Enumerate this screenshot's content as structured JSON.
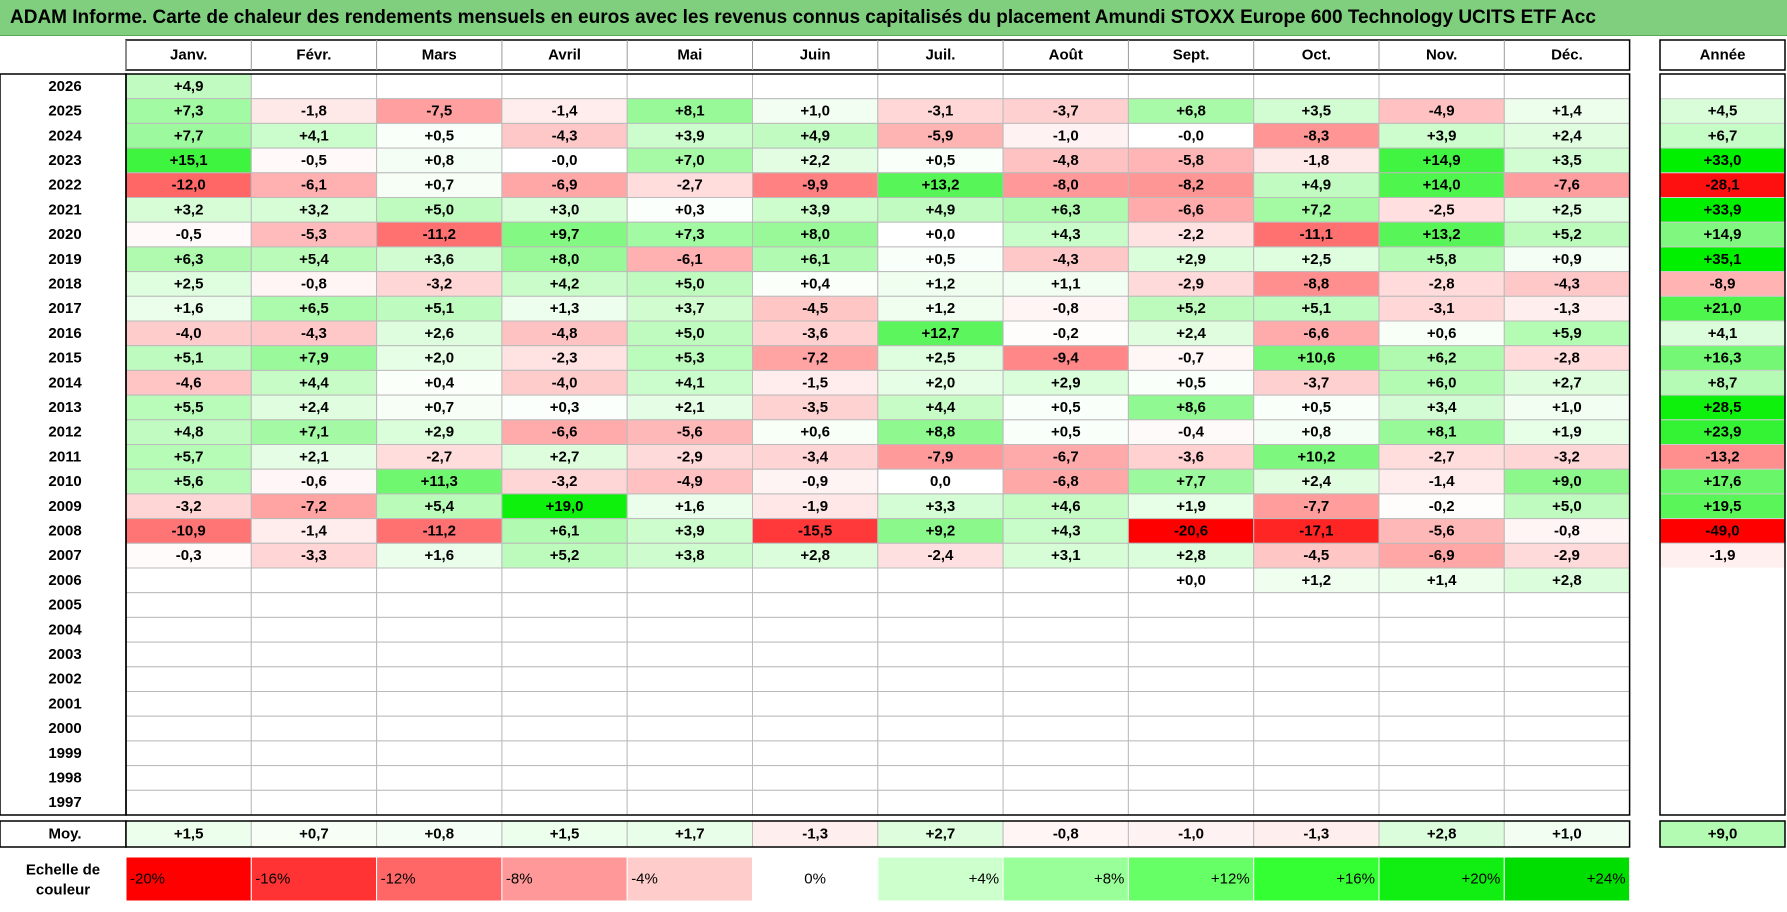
{
  "title": "ADAM Informe. Carte de chaleur des rendements mensuels en euros avec les revenus connus capitalisés du placement Amundi STOXX Europe 600 Technology UCITS ETF Acc",
  "chart_data": {
    "type": "heatmap",
    "title": "ADAM Informe. Carte de chaleur des rendements mensuels en euros avec les revenus connus capitalisés du placement Amundi STOXX Europe 600 Technology UCITS ETF Acc",
    "months": [
      "Janv.",
      "Févr.",
      "Mars",
      "Avril",
      "Mai",
      "Juin",
      "Juil.",
      "Août",
      "Sept.",
      "Oct.",
      "Nov.",
      "Déc."
    ],
    "year_header": "Année",
    "rows": [
      {
        "year": "2026",
        "months": [
          "+4,9",
          "",
          "",
          "",
          "",
          "",
          "",
          "",
          "",
          "",
          "",
          ""
        ],
        "annual": ""
      },
      {
        "year": "2025",
        "months": [
          "+7,3",
          "-1,8",
          "-7,5",
          "-1,4",
          "+8,1",
          "+1,0",
          "-3,1",
          "-3,7",
          "+6,8",
          "+3,5",
          "-4,9",
          "+1,4"
        ],
        "annual": "+4,5"
      },
      {
        "year": "2024",
        "months": [
          "+7,7",
          "+4,1",
          "+0,5",
          "-4,3",
          "+3,9",
          "+4,9",
          "-5,9",
          "-1,0",
          "-0,0",
          "-8,3",
          "+3,9",
          "+2,4"
        ],
        "annual": "+6,7"
      },
      {
        "year": "2023",
        "months": [
          "+15,1",
          "-0,5",
          "+0,8",
          "-0,0",
          "+7,0",
          "+2,2",
          "+0,5",
          "-4,8",
          "-5,8",
          "-1,8",
          "+14,9",
          "+3,5"
        ],
        "annual": "+33,0"
      },
      {
        "year": "2022",
        "months": [
          "-12,0",
          "-6,1",
          "+0,7",
          "-6,9",
          "-2,7",
          "-9,9",
          "+13,2",
          "-8,0",
          "-8,2",
          "+4,9",
          "+14,0",
          "-7,6"
        ],
        "annual": "-28,1"
      },
      {
        "year": "2021",
        "months": [
          "+3,2",
          "+3,2",
          "+5,0",
          "+3,0",
          "+0,3",
          "+3,9",
          "+4,9",
          "+6,3",
          "-6,6",
          "+7,2",
          "-2,5",
          "+2,5"
        ],
        "annual": "+33,9"
      },
      {
        "year": "2020",
        "months": [
          "-0,5",
          "-5,3",
          "-11,2",
          "+9,7",
          "+7,3",
          "+8,0",
          "+0,0",
          "+4,3",
          "-2,2",
          "-11,1",
          "+13,2",
          "+5,2"
        ],
        "annual": "+14,9"
      },
      {
        "year": "2019",
        "months": [
          "+6,3",
          "+5,4",
          "+3,6",
          "+8,0",
          "-6,1",
          "+6,1",
          "+0,5",
          "-4,3",
          "+2,9",
          "+2,5",
          "+5,8",
          "+0,9"
        ],
        "annual": "+35,1"
      },
      {
        "year": "2018",
        "months": [
          "+2,5",
          "-0,8",
          "-3,2",
          "+4,2",
          "+5,0",
          "+0,4",
          "+1,2",
          "+1,1",
          "-2,9",
          "-8,8",
          "-2,8",
          "-4,3"
        ],
        "annual": "-8,9"
      },
      {
        "year": "2017",
        "months": [
          "+1,6",
          "+6,5",
          "+5,1",
          "+1,3",
          "+3,7",
          "-4,5",
          "+1,2",
          "-0,8",
          "+5,2",
          "+5,1",
          "-3,1",
          "-1,3"
        ],
        "annual": "+21,0"
      },
      {
        "year": "2016",
        "months": [
          "-4,0",
          "-4,3",
          "+2,6",
          "-4,8",
          "+5,0",
          "-3,6",
          "+12,7",
          "-0,2",
          "+2,4",
          "-6,6",
          "+0,6",
          "+5,9"
        ],
        "annual": "+4,1"
      },
      {
        "year": "2015",
        "months": [
          "+5,1",
          "+7,9",
          "+2,0",
          "-2,3",
          "+5,3",
          "-7,2",
          "+2,5",
          "-9,4",
          "-0,7",
          "+10,6",
          "+6,2",
          "-2,8"
        ],
        "annual": "+16,3"
      },
      {
        "year": "2014",
        "months": [
          "-4,6",
          "+4,4",
          "+0,4",
          "-4,0",
          "+4,1",
          "-1,5",
          "+2,0",
          "+2,9",
          "+0,5",
          "-3,7",
          "+6,0",
          "+2,7"
        ],
        "annual": "+8,7"
      },
      {
        "year": "2013",
        "months": [
          "+5,5",
          "+2,4",
          "+0,7",
          "+0,3",
          "+2,1",
          "-3,5",
          "+4,4",
          "+0,5",
          "+8,6",
          "+0,5",
          "+3,4",
          "+1,0"
        ],
        "annual": "+28,5"
      },
      {
        "year": "2012",
        "months": [
          "+4,8",
          "+7,1",
          "+2,9",
          "-6,6",
          "-5,6",
          "+0,6",
          "+8,8",
          "+0,5",
          "-0,4",
          "+0,8",
          "+8,1",
          "+1,9"
        ],
        "annual": "+23,9"
      },
      {
        "year": "2011",
        "months": [
          "+5,7",
          "+2,1",
          "-2,7",
          "+2,7",
          "-2,9",
          "-3,4",
          "-7,9",
          "-6,7",
          "-3,6",
          "+10,2",
          "-2,7",
          "-3,2"
        ],
        "annual": "-13,2"
      },
      {
        "year": "2010",
        "months": [
          "+5,6",
          "-0,6",
          "+11,3",
          "-3,2",
          "-4,9",
          "-0,9",
          "0,0",
          "-6,8",
          "+7,7",
          "+2,4",
          "-1,4",
          "+9,0"
        ],
        "annual": "+17,6"
      },
      {
        "year": "2009",
        "months": [
          "-3,2",
          "-7,2",
          "+5,4",
          "+19,0",
          "+1,6",
          "-1,9",
          "+3,3",
          "+4,6",
          "+1,9",
          "-7,7",
          "-0,2",
          "+5,0"
        ],
        "annual": "+19,5"
      },
      {
        "year": "2008",
        "months": [
          "-10,9",
          "-1,4",
          "-11,2",
          "+6,1",
          "+3,9",
          "-15,5",
          "+9,2",
          "+4,3",
          "-20,6",
          "-17,1",
          "-5,6",
          "-0,8"
        ],
        "annual": "-49,0"
      },
      {
        "year": "2007",
        "months": [
          "-0,3",
          "-3,3",
          "+1,6",
          "+5,2",
          "+3,8",
          "+2,8",
          "-2,4",
          "+3,1",
          "+2,8",
          "-4,5",
          "-6,9",
          "-2,9"
        ],
        "annual": "-1,9"
      },
      {
        "year": "2006",
        "months": [
          "",
          "",
          "",
          "",
          "",
          "",
          "",
          "",
          "+0,0",
          "+1,2",
          "+1,4",
          "+2,8"
        ],
        "annual": ""
      },
      {
        "year": "2005",
        "months": [
          "",
          "",
          "",
          "",
          "",
          "",
          "",
          "",
          "",
          "",
          "",
          ""
        ],
        "annual": ""
      },
      {
        "year": "2004",
        "months": [
          "",
          "",
          "",
          "",
          "",
          "",
          "",
          "",
          "",
          "",
          "",
          ""
        ],
        "annual": ""
      },
      {
        "year": "2003",
        "months": [
          "",
          "",
          "",
          "",
          "",
          "",
          "",
          "",
          "",
          "",
          "",
          ""
        ],
        "annual": ""
      },
      {
        "year": "2002",
        "months": [
          "",
          "",
          "",
          "",
          "",
          "",
          "",
          "",
          "",
          "",
          "",
          ""
        ],
        "annual": ""
      },
      {
        "year": "2001",
        "months": [
          "",
          "",
          "",
          "",
          "",
          "",
          "",
          "",
          "",
          "",
          "",
          ""
        ],
        "annual": ""
      },
      {
        "year": "2000",
        "months": [
          "",
          "",
          "",
          "",
          "",
          "",
          "",
          "",
          "",
          "",
          "",
          ""
        ],
        "annual": ""
      },
      {
        "year": "1999",
        "months": [
          "",
          "",
          "",
          "",
          "",
          "",
          "",
          "",
          "",
          "",
          "",
          ""
        ],
        "annual": ""
      },
      {
        "year": "1998",
        "months": [
          "",
          "",
          "",
          "",
          "",
          "",
          "",
          "",
          "",
          "",
          "",
          ""
        ],
        "annual": ""
      },
      {
        "year": "1997",
        "months": [
          "",
          "",
          "",
          "",
          "",
          "",
          "",
          "",
          "",
          "",
          "",
          ""
        ],
        "annual": ""
      }
    ],
    "average": {
      "label": "Moy.",
      "months": [
        "+1,5",
        "+0,7",
        "+0,8",
        "+1,5",
        "+1,7",
        "-1,3",
        "+2,7",
        "-0,8",
        "-1,0",
        "-1,3",
        "+2,8",
        "+1,0"
      ],
      "annual": "+9,0"
    },
    "scale": {
      "label_lines": [
        "Echelle de",
        "couleur"
      ],
      "stops": [
        {
          "label": "-20%",
          "value": -20,
          "color": "#ff0000"
        },
        {
          "label": "-16%",
          "value": -16,
          "color": "#ff3333"
        },
        {
          "label": "-12%",
          "value": -12,
          "color": "#ff6666"
        },
        {
          "label": "-8%",
          "value": -8,
          "color": "#ff9999"
        },
        {
          "label": "-4%",
          "value": -4,
          "color": "#ffcccc"
        },
        {
          "label": "0%",
          "value": 0,
          "color": "#ffffff"
        },
        {
          "label": "+4%",
          "value": 4,
          "color": "#ccffcc"
        },
        {
          "label": "+8%",
          "value": 8,
          "color": "#99ff99"
        },
        {
          "label": "+12%",
          "value": 12,
          "color": "#66ff66"
        },
        {
          "label": "+16%",
          "value": 16,
          "color": "#33ff33"
        },
        {
          "label": "+20%",
          "value": 20,
          "color": "#11ee11"
        },
        {
          "label": "+24%",
          "value": 24,
          "color": "#00dd00"
        }
      ]
    }
  }
}
